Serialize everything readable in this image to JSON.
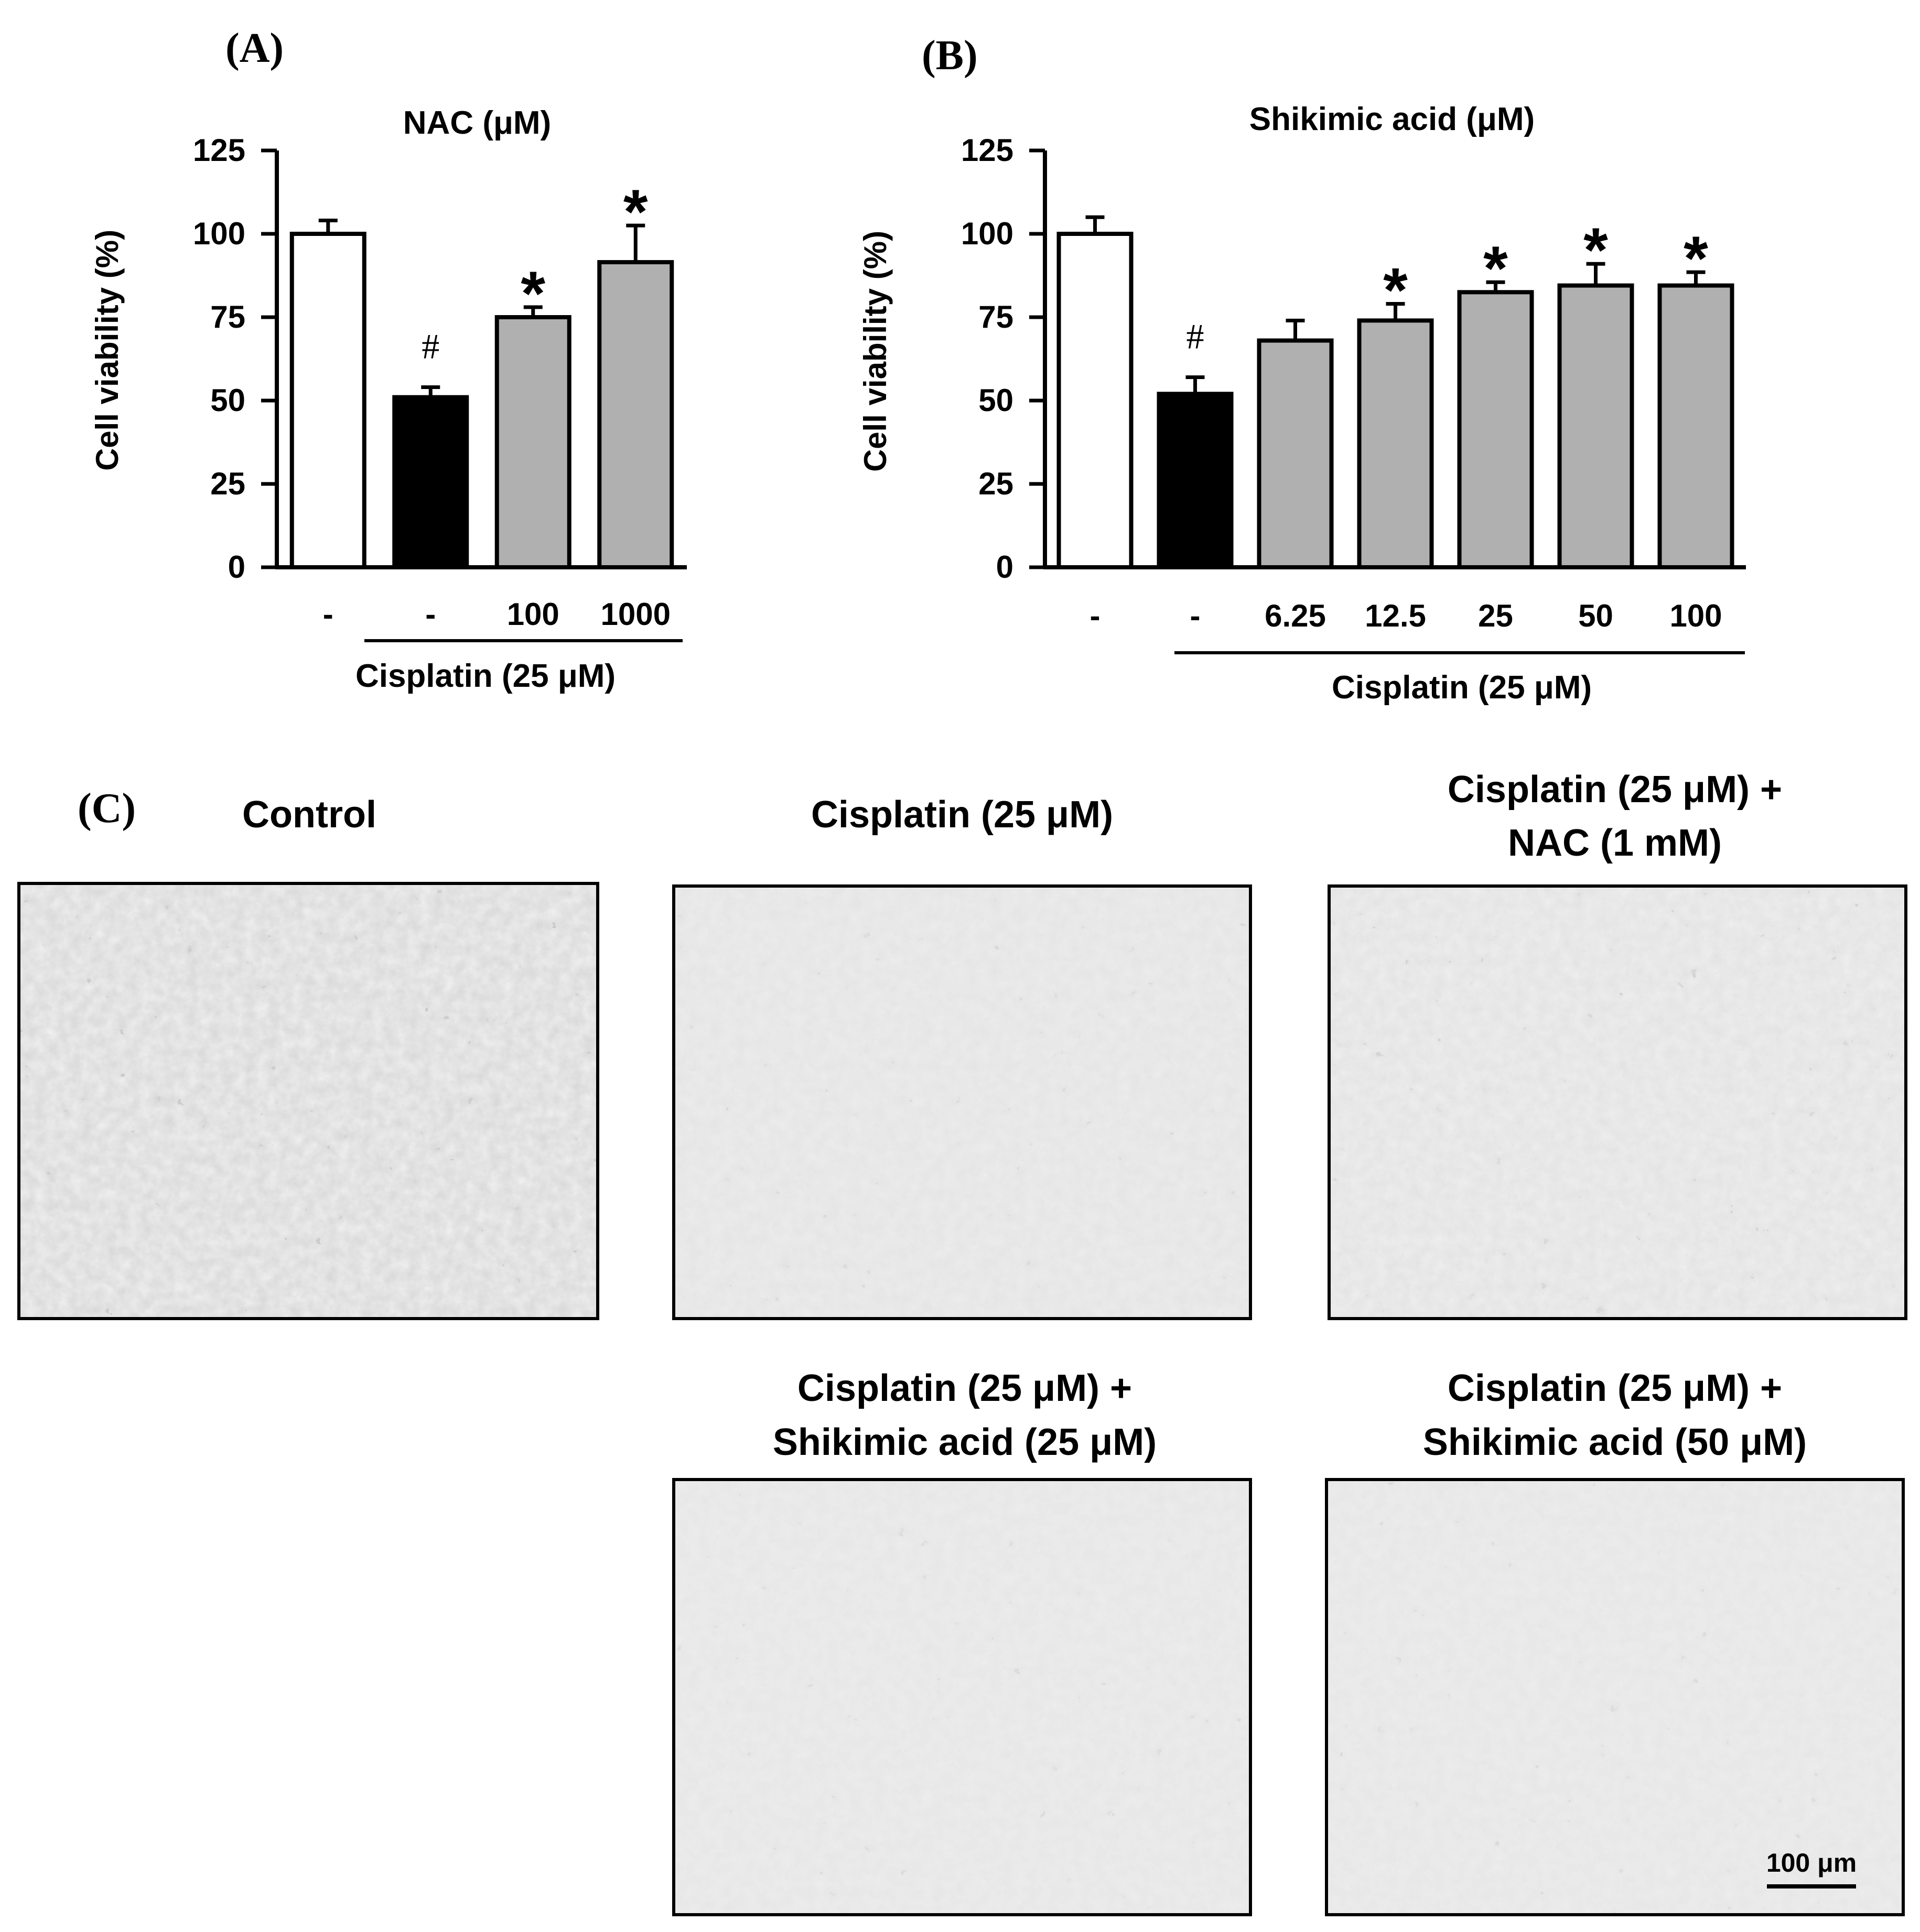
{
  "panels": {
    "a": "(A)",
    "b": "(B)",
    "c": "(C)"
  },
  "chart_data": [
    {
      "type": "bar",
      "title": "NAC (μM)",
      "ylabel": "Cell viability (%)",
      "ylim": [
        0,
        125
      ],
      "yticks": [
        0,
        25,
        50,
        75,
        100,
        125
      ],
      "categories": [
        "-",
        "-",
        "100",
        "1000"
      ],
      "values": [
        100,
        51,
        75,
        91.5
      ],
      "errors": [
        4,
        3,
        3,
        11
      ],
      "bar_colors": [
        "#ffffff",
        "#000000",
        "#b0b0b0",
        "#b0b0b0"
      ],
      "annotations": [
        "",
        "#",
        "*",
        "*"
      ],
      "group_label": "Cisplatin (25 μM)",
      "grid": false
    },
    {
      "type": "bar",
      "title": "Shikimic acid  (μM)",
      "ylabel": "Cell viability (%)",
      "ylim": [
        0,
        125
      ],
      "yticks": [
        0,
        25,
        50,
        75,
        100,
        125
      ],
      "categories": [
        "-",
        "-",
        "6.25",
        "12.5",
        "25",
        "50",
        "100"
      ],
      "values": [
        100,
        52,
        68,
        74,
        82.5,
        84.5,
        84.5
      ],
      "errors": [
        5,
        5,
        6,
        5,
        3,
        6.5,
        4
      ],
      "bar_colors": [
        "#ffffff",
        "#000000",
        "#b0b0b0",
        "#b0b0b0",
        "#b0b0b0",
        "#b0b0b0",
        "#b0b0b0"
      ],
      "annotations": [
        "",
        "#",
        "",
        "*",
        "*",
        "*",
        "*"
      ],
      "group_label": "Cisplatin (25 μM)",
      "grid": false
    }
  ],
  "micrographs": [
    {
      "line1": "Control",
      "line2": ""
    },
    {
      "line1": "Cisplatin (25 μM)",
      "line2": ""
    },
    {
      "line1": "Cisplatin (25 μM) +",
      "line2": "NAC (1 mM)"
    },
    {
      "line1": "Cisplatin (25 μM) +",
      "line2": "Shikimic acid (25 μM)"
    },
    {
      "line1": "Cisplatin (25  μM)  +",
      "line2": "Shikimic acid (50 μM)"
    }
  ],
  "scale_bar": "100 μm"
}
